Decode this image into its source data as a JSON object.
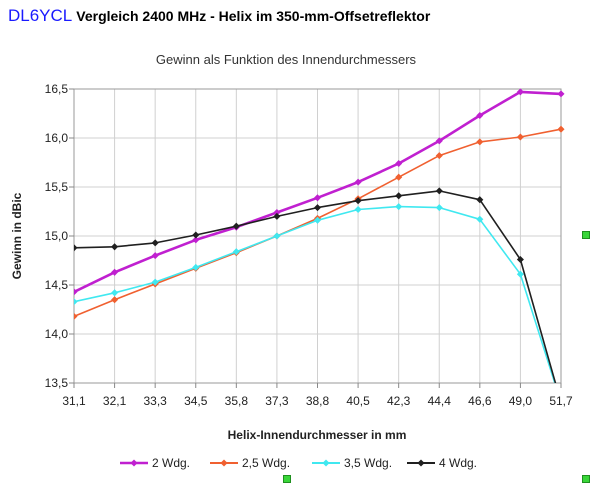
{
  "header": {
    "brand": "DL6YCL",
    "headline": "Vergleich 2400 MHz - Helix im 350-mm-Offsetreflektor"
  },
  "chart_data": {
    "type": "line",
    "title": "Gewinn als Funktion des Innendurchmessers",
    "xlabel": "Helix-Innendurchmesser in mm",
    "ylabel": "Gewinn in dBic",
    "categories": [
      "31,1",
      "32,1",
      "33,3",
      "34,5",
      "35,8",
      "37,3",
      "38,8",
      "40,5",
      "42,3",
      "44,4",
      "46,6",
      "49,0",
      "51,7"
    ],
    "ylim": [
      13.5,
      16.5
    ],
    "yticks": [
      "13,5",
      "14,0",
      "14,5",
      "15,0",
      "15,5",
      "16,0",
      "16,5"
    ],
    "grid": true,
    "legend_position": "bottom",
    "series": [
      {
        "name": "2 Wdg.",
        "color": "#c020d0",
        "width": 2.6,
        "values": [
          14.43,
          14.63,
          14.8,
          14.96,
          15.09,
          15.24,
          15.39,
          15.55,
          15.74,
          15.97,
          16.23,
          16.47,
          16.45
        ]
      },
      {
        "name": "2,5 Wdg.",
        "color": "#f06030",
        "width": 1.6,
        "values": [
          14.18,
          14.35,
          14.51,
          14.67,
          14.83,
          15.0,
          15.18,
          15.38,
          15.6,
          15.82,
          15.96,
          16.01,
          16.09
        ]
      },
      {
        "name": "3,5 Wdg.",
        "color": "#40e8f0",
        "width": 1.6,
        "values": [
          14.33,
          14.42,
          14.53,
          14.68,
          14.84,
          15.0,
          15.16,
          15.27,
          15.3,
          15.29,
          15.17,
          14.61,
          13.3
        ]
      },
      {
        "name": "4 Wdg.",
        "color": "#202020",
        "width": 1.6,
        "values": [
          14.88,
          14.89,
          14.93,
          15.01,
          15.1,
          15.2,
          15.29,
          15.36,
          15.41,
          15.46,
          15.37,
          14.76,
          13.3
        ]
      }
    ]
  }
}
